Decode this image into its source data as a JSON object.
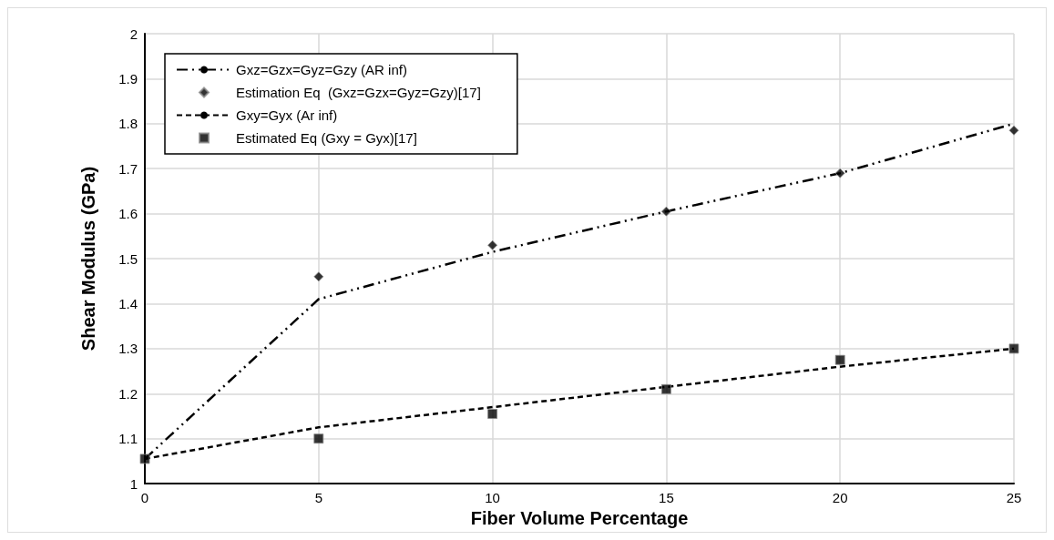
{
  "chart_data": {
    "type": "line",
    "xlabel": "Fiber Volume Percentage",
    "ylabel": "Shear Modulus (GPa)",
    "xlim": [
      0,
      25
    ],
    "xticks": [
      0,
      5,
      10,
      15,
      20,
      25
    ],
    "ylim": [
      1,
      2
    ],
    "yticks": [
      1,
      1.1,
      1.2,
      1.3,
      1.4,
      1.5,
      1.6,
      1.7,
      1.8,
      1.9,
      2
    ],
    "grid": true,
    "legend": "top left",
    "series": [
      {
        "name": "Gxz=Gzx=Gyz=Gzy (AR inf)",
        "color": "#000000",
        "line_style": "dashed",
        "marker": "none",
        "x": [
          0,
          5,
          10,
          15,
          20,
          25
        ],
        "values": [
          1.055,
          1.41,
          1.515,
          1.605,
          1.69,
          1.8
        ]
      },
      {
        "name": "Estimation Eq  (Gxz=Gzx=Gyz=Gzy)[17]",
        "type": "scatter",
        "color": "#000000",
        "marker": "diamond",
        "x": [
          5,
          10,
          15,
          20,
          25
        ],
        "values": [
          1.46,
          1.53,
          1.605,
          1.69,
          1.785
        ]
      },
      {
        "name": "Gxy=Gyx (Ar inf)",
        "color": "#000000",
        "line_style": "dashed",
        "marker": "none",
        "x": [
          0,
          5,
          10,
          15,
          20,
          25
        ],
        "values": [
          1.055,
          1.125,
          1.17,
          1.215,
          1.26,
          1.3
        ]
      },
      {
        "name": "Estimated Eq (Gxy = Gyx)[17]",
        "type": "scatter",
        "color": "#000000",
        "marker": "square",
        "x": [
          0,
          5,
          10,
          15,
          20,
          25
        ],
        "values": [
          1.055,
          1.1,
          1.155,
          1.21,
          1.275,
          1.3
        ]
      }
    ]
  }
}
